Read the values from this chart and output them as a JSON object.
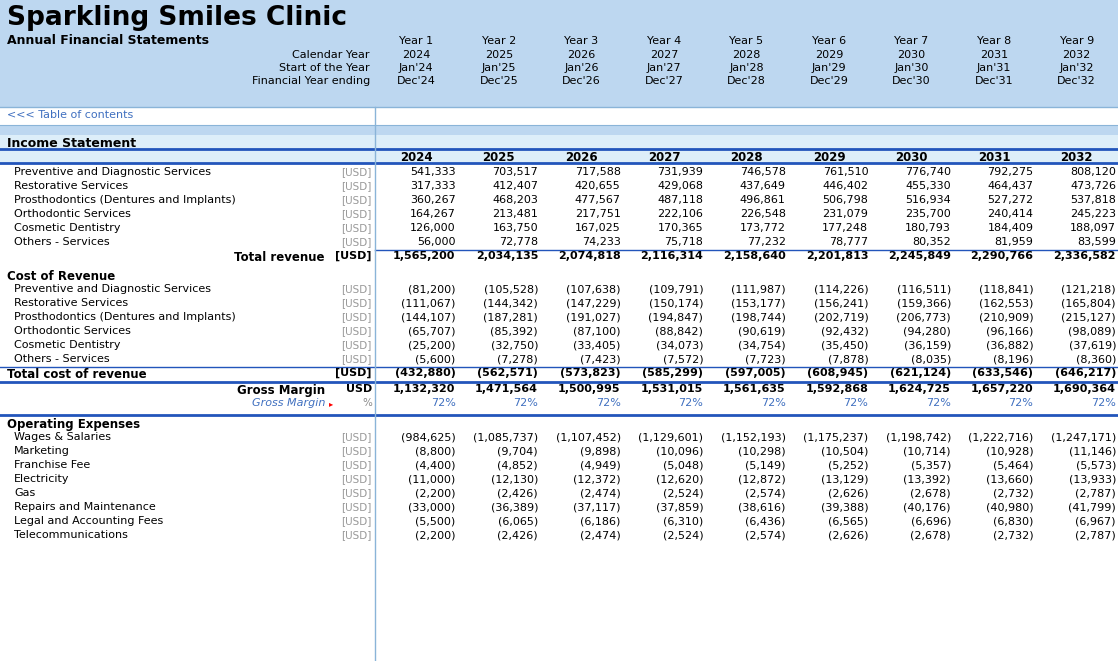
{
  "title": "Sparkling Smiles Clinic",
  "subtitle": "Annual Financial Statements",
  "bg_color": "#bdd7f0",
  "white_bg": "#ffffff",
  "section_bg": "#ddeef9",
  "header_labels": [
    "Calendar Year",
    "Start of the Year",
    "Financial Year ending"
  ],
  "year_labels": [
    "Year 1",
    "Year 2",
    "Year 3",
    "Year 4",
    "Year 5",
    "Year 6",
    "Year 7",
    "Year 8",
    "Year 9"
  ],
  "cal_years": [
    "2024",
    "2025",
    "2026",
    "2027",
    "2028",
    "2029",
    "2030",
    "2031",
    "2032"
  ],
  "start_years": [
    "Jan'24",
    "Jan'25",
    "Jan'26",
    "Jan'27",
    "Jan'28",
    "Jan'29",
    "Jan'30",
    "Jan'31",
    "Jan'32"
  ],
  "end_years": [
    "Dec'24",
    "Dec'25",
    "Dec'26",
    "Dec'27",
    "Dec'28",
    "Dec'29",
    "Dec'30",
    "Dec'31",
    "Dec'32"
  ],
  "table_of_contents": "<<< Table of contents",
  "income_statement_label": "Income Statement",
  "data_years": [
    "2024",
    "2025",
    "2026",
    "2027",
    "2028",
    "2029",
    "2030",
    "2031",
    "2032"
  ],
  "income_rows": [
    {
      "label": "Preventive and Diagnostic Services",
      "unit": "[USD]",
      "values": [
        "541,333",
        "703,517",
        "717,588",
        "731,939",
        "746,578",
        "761,510",
        "776,740",
        "792,275",
        "808,120"
      ]
    },
    {
      "label": "Restorative Services",
      "unit": "[USD]",
      "values": [
        "317,333",
        "412,407",
        "420,655",
        "429,068",
        "437,649",
        "446,402",
        "455,330",
        "464,437",
        "473,726"
      ]
    },
    {
      "label": "Prosthodontics (Dentures and Implants)",
      "unit": "[USD]",
      "values": [
        "360,267",
        "468,203",
        "477,567",
        "487,118",
        "496,861",
        "506,798",
        "516,934",
        "527,272",
        "537,818"
      ]
    },
    {
      "label": "Orthodontic Services",
      "unit": "[USD]",
      "values": [
        "164,267",
        "213,481",
        "217,751",
        "222,106",
        "226,548",
        "231,079",
        "235,700",
        "240,414",
        "245,223"
      ]
    },
    {
      "label": "Cosmetic Dentistry",
      "unit": "[USD]",
      "values": [
        "126,000",
        "163,750",
        "167,025",
        "170,365",
        "173,772",
        "177,248",
        "180,793",
        "184,409",
        "188,097"
      ]
    },
    {
      "label": "Others - Services",
      "unit": "[USD]",
      "values": [
        "56,000",
        "72,778",
        "74,233",
        "75,718",
        "77,232",
        "78,777",
        "80,352",
        "81,959",
        "83,599"
      ]
    }
  ],
  "total_revenue": {
    "label": "Total revenue",
    "unit": "[USD]",
    "values": [
      "1,565,200",
      "2,034,135",
      "2,074,818",
      "2,116,314",
      "2,158,640",
      "2,201,813",
      "2,245,849",
      "2,290,766",
      "2,336,582"
    ]
  },
  "cost_of_revenue_label": "Cost of Revenue",
  "cost_rows": [
    {
      "label": "Preventive and Diagnostic Services",
      "unit": "[USD]",
      "values": [
        "(81,200)",
        "(105,528)",
        "(107,638)",
        "(109,791)",
        "(111,987)",
        "(114,226)",
        "(116,511)",
        "(118,841)",
        "(121,218)"
      ]
    },
    {
      "label": "Restorative Services",
      "unit": "[USD]",
      "values": [
        "(111,067)",
        "(144,342)",
        "(147,229)",
        "(150,174)",
        "(153,177)",
        "(156,241)",
        "(159,366)",
        "(162,553)",
        "(165,804)"
      ]
    },
    {
      "label": "Prosthodontics (Dentures and Implants)",
      "unit": "[USD]",
      "values": [
        "(144,107)",
        "(187,281)",
        "(191,027)",
        "(194,847)",
        "(198,744)",
        "(202,719)",
        "(206,773)",
        "(210,909)",
        "(215,127)"
      ]
    },
    {
      "label": "Orthodontic Services",
      "unit": "[USD]",
      "values": [
        "(65,707)",
        "(85,392)",
        "(87,100)",
        "(88,842)",
        "(90,619)",
        "(92,432)",
        "(94,280)",
        "(96,166)",
        "(98,089)"
      ]
    },
    {
      "label": "Cosmetic Dentistry",
      "unit": "[USD]",
      "values": [
        "(25,200)",
        "(32,750)",
        "(33,405)",
        "(34,073)",
        "(34,754)",
        "(35,450)",
        "(36,159)",
        "(36,882)",
        "(37,619)"
      ]
    },
    {
      "label": "Others - Services",
      "unit": "[USD]",
      "values": [
        "(5,600)",
        "(7,278)",
        "(7,423)",
        "(7,572)",
        "(7,723)",
        "(7,878)",
        "(8,035)",
        "(8,196)",
        "(8,360)"
      ]
    }
  ],
  "total_cost": {
    "label": "Total cost of revenue",
    "unit": "[USD]",
    "values": [
      "(432,880)",
      "(562,571)",
      "(573,823)",
      "(585,299)",
      "(597,005)",
      "(608,945)",
      "(621,124)",
      "(633,546)",
      "(646,217)"
    ]
  },
  "gross_margin_usd": {
    "label": "Gross Margin",
    "unit": "USD",
    "values": [
      "1,132,320",
      "1,471,564",
      "1,500,995",
      "1,531,015",
      "1,561,635",
      "1,592,868",
      "1,624,725",
      "1,657,220",
      "1,690,364"
    ]
  },
  "gross_margin_pct": {
    "label": "Gross Margin",
    "unit": "%",
    "values": [
      "72%",
      "72%",
      "72%",
      "72%",
      "72%",
      "72%",
      "72%",
      "72%",
      "72%"
    ]
  },
  "operating_expenses_label": "Operating Expenses",
  "opex_rows": [
    {
      "label": "Wages & Salaries",
      "unit": "[USD]",
      "values": [
        "(984,625)",
        "(1,085,737)",
        "(1,107,452)",
        "(1,129,601)",
        "(1,152,193)",
        "(1,175,237)",
        "(1,198,742)",
        "(1,222,716)",
        "(1,247,171)"
      ]
    },
    {
      "label": "Marketing",
      "unit": "[USD]",
      "values": [
        "(8,800)",
        "(9,704)",
        "(9,898)",
        "(10,096)",
        "(10,298)",
        "(10,504)",
        "(10,714)",
        "(10,928)",
        "(11,146)"
      ]
    },
    {
      "label": "Franchise Fee",
      "unit": "[USD]",
      "values": [
        "(4,400)",
        "(4,852)",
        "(4,949)",
        "(5,048)",
        "(5,149)",
        "(5,252)",
        "(5,357)",
        "(5,464)",
        "(5,573)"
      ]
    },
    {
      "label": "Electricity",
      "unit": "[USD]",
      "values": [
        "(11,000)",
        "(12,130)",
        "(12,372)",
        "(12,620)",
        "(12,872)",
        "(13,129)",
        "(13,392)",
        "(13,660)",
        "(13,933)"
      ]
    },
    {
      "label": "Gas",
      "unit": "[USD]",
      "values": [
        "(2,200)",
        "(2,426)",
        "(2,474)",
        "(2,524)",
        "(2,574)",
        "(2,626)",
        "(2,678)",
        "(2,732)",
        "(2,787)"
      ]
    },
    {
      "label": "Repairs and Maintenance",
      "unit": "[USD]",
      "values": [
        "(33,000)",
        "(36,389)",
        "(37,117)",
        "(37,859)",
        "(38,616)",
        "(39,388)",
        "(40,176)",
        "(40,980)",
        "(41,799)"
      ]
    },
    {
      "label": "Legal and Accounting Fees",
      "unit": "[USD]",
      "values": [
        "(5,500)",
        "(6,065)",
        "(6,186)",
        "(6,310)",
        "(6,436)",
        "(6,565)",
        "(6,696)",
        "(6,830)",
        "(6,967)"
      ]
    },
    {
      "label": "Telecommunications",
      "unit": "[USD]",
      "values": [
        "(2,200)",
        "(2,426)",
        "(2,474)",
        "(2,524)",
        "(2,574)",
        "(2,626)",
        "(2,678)",
        "(2,732)",
        "(2,787)"
      ]
    }
  ]
}
